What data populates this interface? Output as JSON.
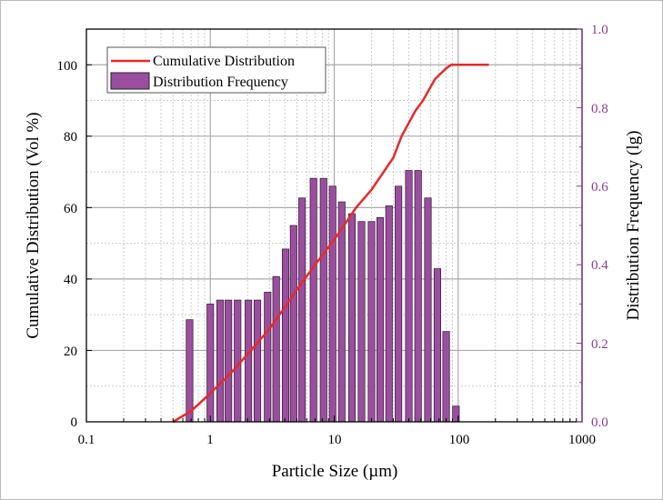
{
  "chart_data": {
    "type": "bar+line",
    "xlabel": "Particle Size (µm)",
    "ylabel_left": "Cumulative Distribution (Vol  %)",
    "ylabel_right": "Distribution Frequency (lg)",
    "xscale": "log",
    "xlim": [
      0.1,
      1000
    ],
    "ylim_left": [
      0,
      110
    ],
    "ylim_right": [
      0,
      1.0
    ],
    "x_ticks": [
      "0.1",
      "1",
      "10",
      "100",
      "1000"
    ],
    "y_left_ticks": [
      "0",
      "20",
      "40",
      "60",
      "80",
      "100"
    ],
    "y_right_ticks": [
      "0.0",
      "0.2",
      "0.4",
      "0.6",
      "0.8",
      "1.0"
    ],
    "grid": true,
    "legend": {
      "placement": "top-left",
      "entries": [
        "Cumulative Distribution",
        "Distribution Frequency"
      ]
    },
    "colors": {
      "line": "#e8292a",
      "bar": "#9b4e9f",
      "right_axis": "#8e3c92"
    },
    "series": [
      {
        "name": "Distribution Frequency",
        "type": "bar",
        "axis": "right",
        "x": [
          0.68,
          1.0,
          1.2,
          1.4,
          1.66,
          2.03,
          2.4,
          2.9,
          3.4,
          4.05,
          4.7,
          5.5,
          6.8,
          8.2,
          9.7,
          11.5,
          13.9,
          16.6,
          20,
          23.5,
          27.7,
          33,
          40,
          47.5,
          57,
          68,
          80,
          96
        ],
        "values": [
          0.26,
          0.3,
          0.31,
          0.31,
          0.31,
          0.31,
          0.31,
          0.33,
          0.37,
          0.44,
          0.5,
          0.57,
          0.62,
          0.62,
          0.6,
          0.56,
          0.53,
          0.51,
          0.51,
          0.52,
          0.55,
          0.6,
          0.64,
          0.64,
          0.57,
          0.39,
          0.23,
          0.04
        ]
      },
      {
        "name": "Cumulative Distribution",
        "type": "line",
        "axis": "left",
        "x": [
          0.5,
          0.7,
          1,
          1.5,
          2,
          3,
          5,
          7,
          10,
          15,
          20,
          30,
          35,
          45,
          52,
          65,
          80,
          88,
          177
        ],
        "values": [
          0,
          3,
          8,
          14,
          19,
          26,
          37,
          44,
          51,
          60,
          65,
          74,
          80,
          87,
          90,
          96,
          99,
          100,
          100
        ]
      }
    ]
  }
}
